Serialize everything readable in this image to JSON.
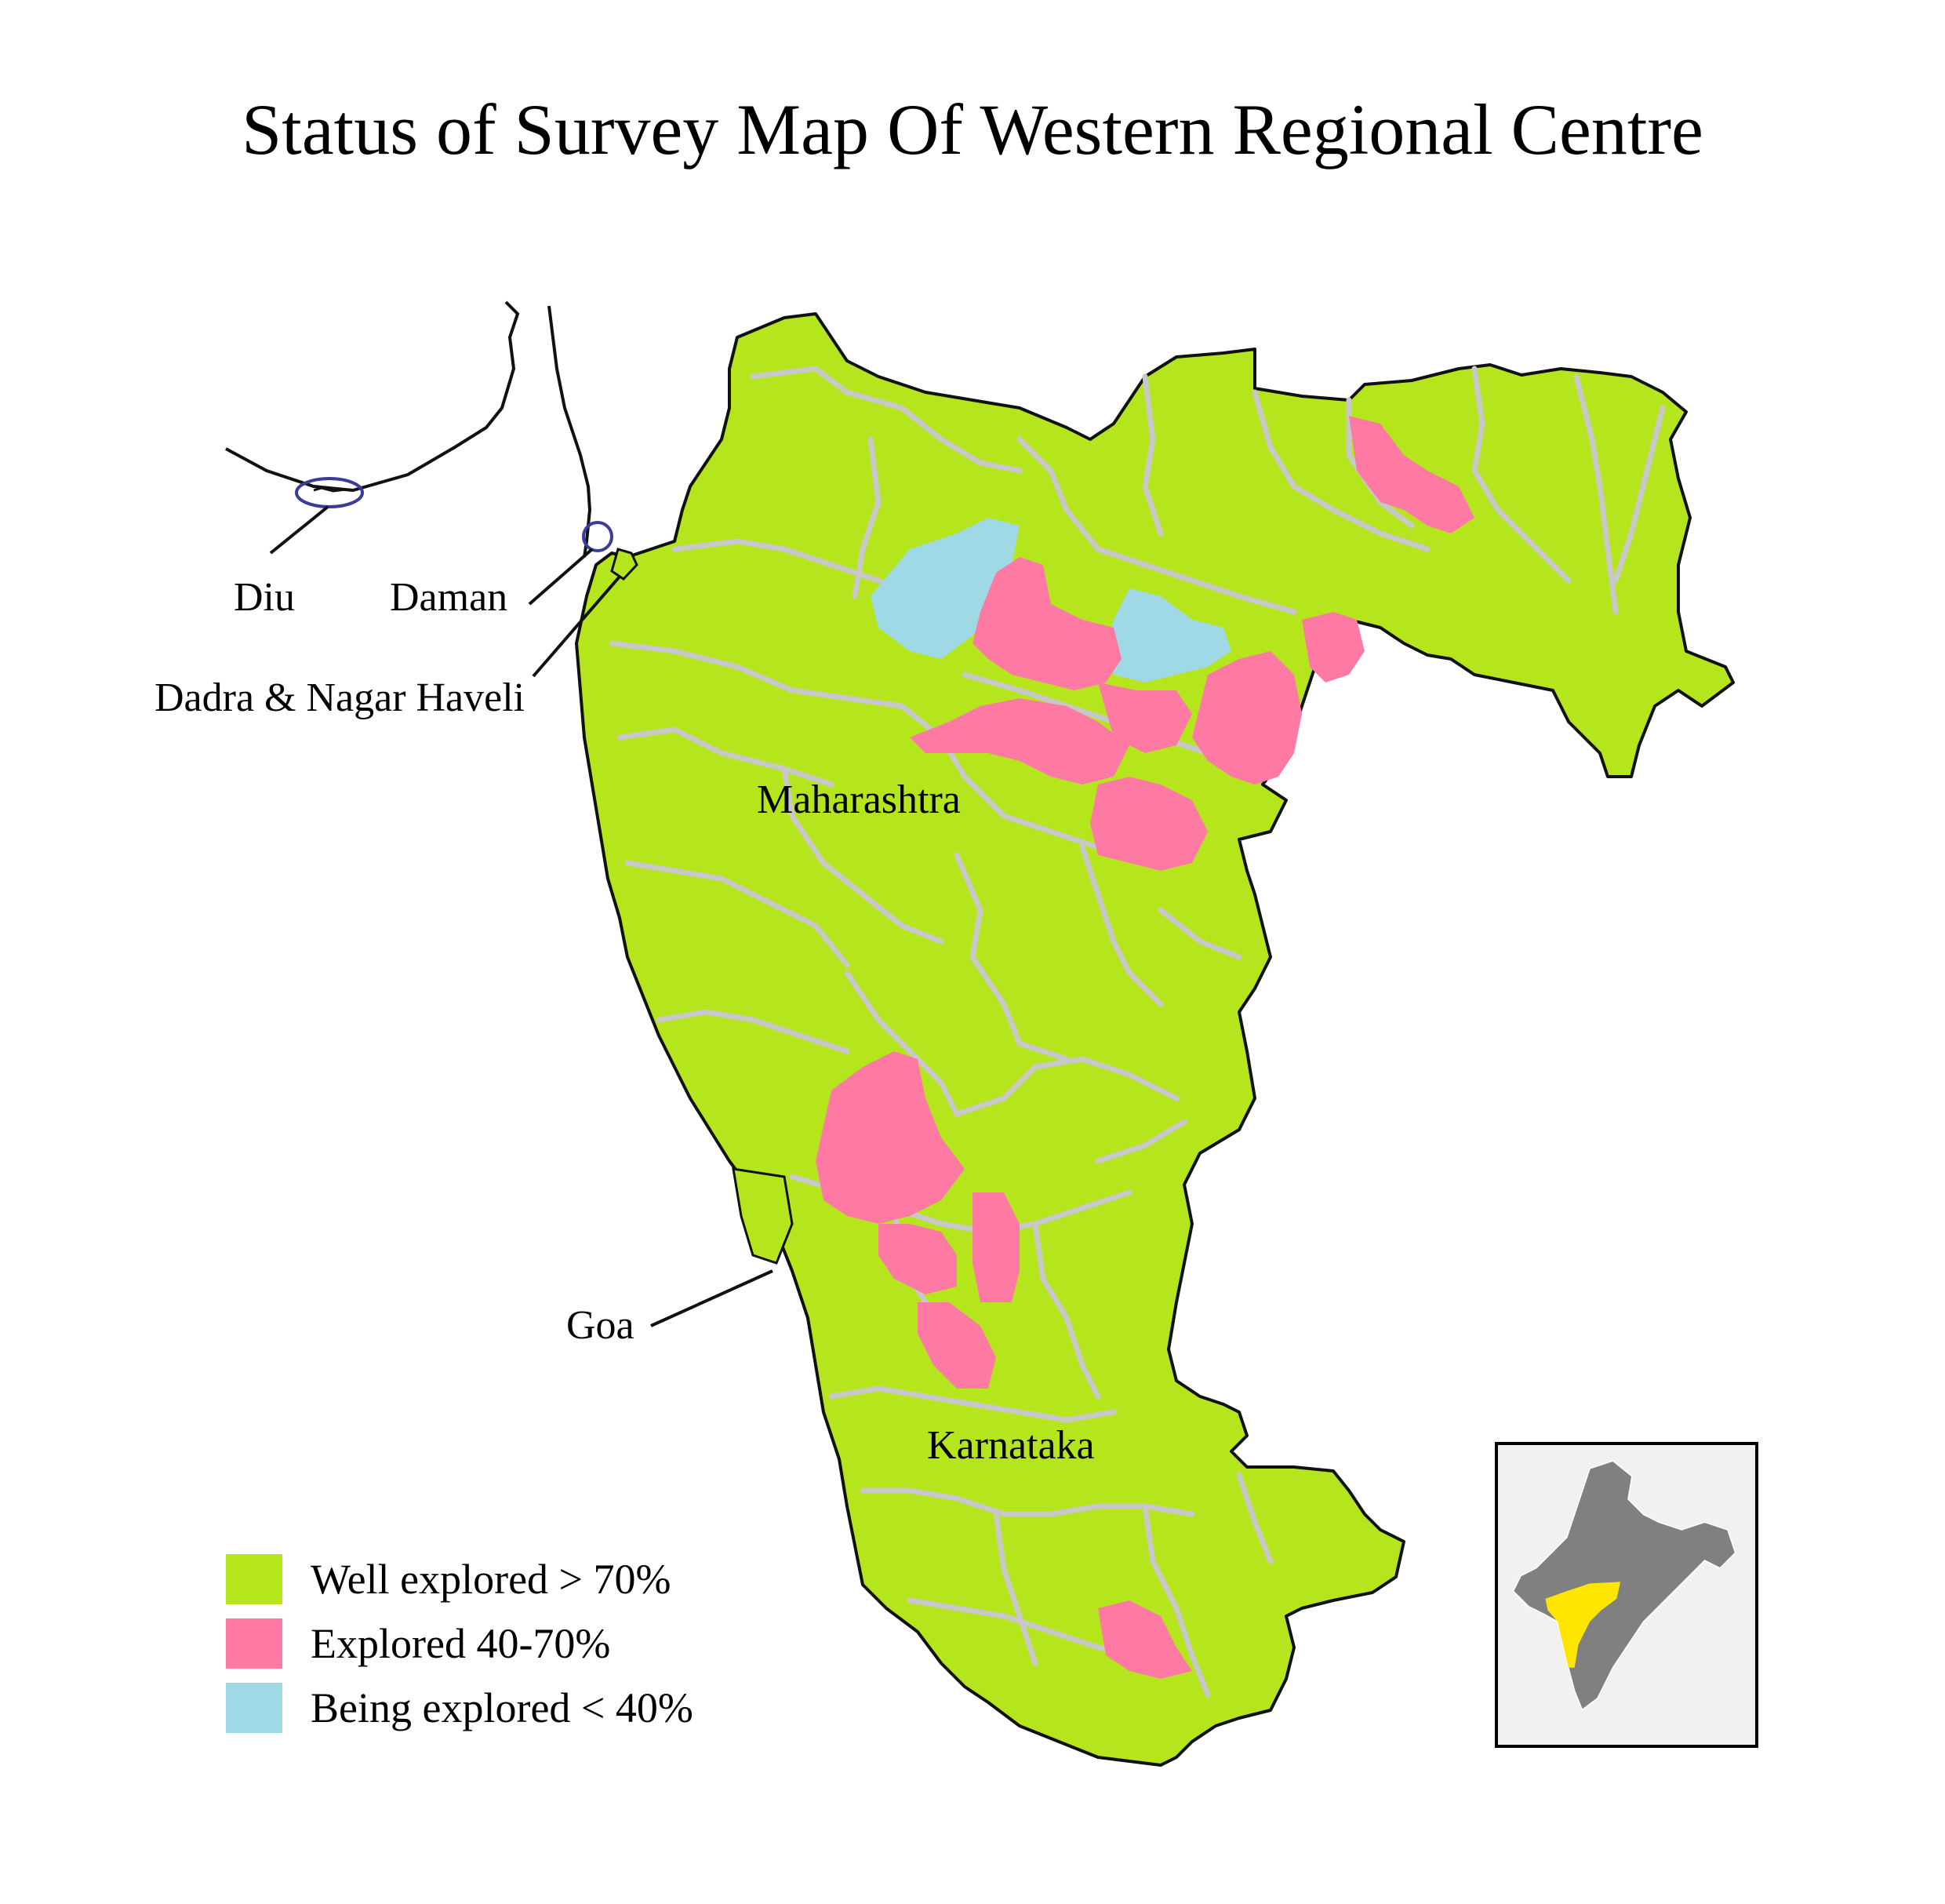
{
  "title": "Status of Survey Map Of Western Regional Centre",
  "labels": {
    "diu": "Diu",
    "daman": "Daman",
    "dadra": "Dadra & Nagar Haveli",
    "maharashtra": "Maharashtra",
    "goa": "Goa",
    "karnataka": "Karnataka"
  },
  "legend": [
    {
      "label": "Well explored > 70%",
      "color": "#b5e61d"
    },
    {
      "label": "Explored 40-70%",
      "color": "#ff7aa2"
    },
    {
      "label": "Being explored < 40%",
      "color": "#9fd9e6"
    }
  ],
  "colors": {
    "well_explored": "#b5e61d",
    "explored": "#ff7aa2",
    "being_explored": "#9fd9e6",
    "district_border": "#c8c8c8",
    "coast_line": "#111111",
    "marker_circle": "#3b3b9a",
    "inset_india": "#808080",
    "inset_highlight": "#ffe600"
  },
  "icons": {
    "inset": "india-locator-map"
  }
}
